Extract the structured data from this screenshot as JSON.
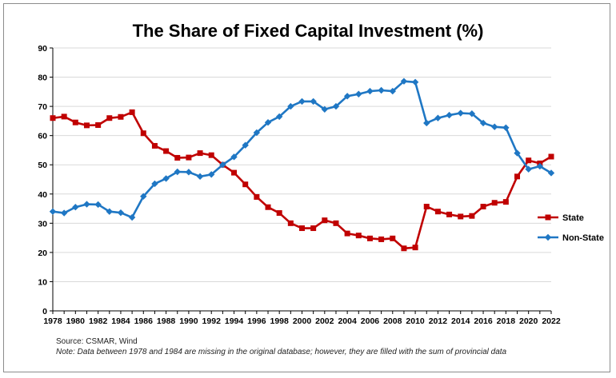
{
  "chart_data": {
    "type": "line",
    "title": "The Share of Fixed Capital Investment (%)",
    "xlabel": "",
    "ylabel": "",
    "ylim": [
      0,
      90
    ],
    "xlim": [
      1978,
      2022
    ],
    "yticks": [
      0,
      10,
      20,
      30,
      40,
      50,
      60,
      70,
      80,
      90
    ],
    "xticks": [
      1978,
      1980,
      1982,
      1984,
      1986,
      1988,
      1990,
      1992,
      1994,
      1996,
      1998,
      2000,
      2002,
      2004,
      2006,
      2008,
      2010,
      2012,
      2014,
      2016,
      2018,
      2020,
      2022
    ],
    "grid": true,
    "legend_position": "right",
    "x": [
      1978,
      1979,
      1980,
      1981,
      1982,
      1983,
      1984,
      1985,
      1986,
      1987,
      1988,
      1989,
      1990,
      1991,
      1992,
      1993,
      1994,
      1995,
      1996,
      1997,
      1998,
      1999,
      2000,
      2001,
      2002,
      2003,
      2004,
      2005,
      2006,
      2007,
      2008,
      2009,
      2010,
      2011,
      2012,
      2013,
      2014,
      2015,
      2016,
      2017,
      2018,
      2019,
      2020,
      2021,
      2022
    ],
    "series": [
      {
        "name": "State",
        "color": "#c00000",
        "marker": "square",
        "values": [
          66.0,
          66.5,
          64.5,
          63.5,
          63.6,
          66.0,
          66.4,
          68.0,
          60.8,
          56.5,
          54.7,
          52.4,
          52.5,
          54.0,
          53.3,
          50.0,
          47.3,
          43.3,
          39.0,
          35.5,
          33.5,
          30.0,
          28.3,
          28.3,
          31.0,
          30.0,
          26.5,
          25.8,
          24.8,
          24.5,
          24.8,
          21.4,
          21.7,
          35.7,
          34.0,
          33.0,
          32.3,
          32.5,
          35.7,
          37.0,
          37.3,
          46.0,
          51.5,
          50.5,
          52.8
        ]
      },
      {
        "name": "Non-State",
        "color": "#1f77c4",
        "marker": "diamond",
        "values": [
          34.0,
          33.5,
          35.5,
          36.5,
          36.4,
          34.0,
          33.6,
          32.0,
          39.2,
          43.5,
          45.3,
          47.6,
          47.5,
          46.0,
          46.7,
          50.0,
          52.7,
          56.7,
          61.0,
          64.5,
          66.5,
          70.0,
          71.7,
          71.7,
          69.0,
          70.0,
          73.5,
          74.2,
          75.2,
          75.5,
          75.2,
          78.6,
          78.3,
          64.3,
          66.0,
          67.0,
          67.7,
          67.5,
          64.3,
          63.0,
          62.7,
          54.0,
          48.5,
          49.5,
          47.2
        ]
      }
    ]
  },
  "notes": {
    "source": "Source: CSMAR, Wind",
    "note": "Note: Data between 1978  and 1984 are missing in the original database; however, they are filled with the sum of provincial data"
  }
}
